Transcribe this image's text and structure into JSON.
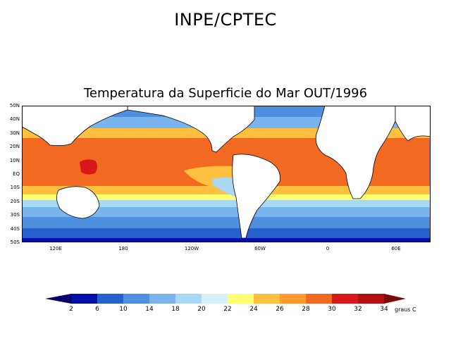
{
  "header": {
    "title": "INPE/CPTEC"
  },
  "map": {
    "title": "Temperatura da Superficie do Mar OUT/1996",
    "lat_labels": [
      "50N",
      "40N",
      "30N",
      "20N",
      "10N",
      "EQ",
      "10S",
      "20S",
      "30S",
      "40S",
      "50S"
    ],
    "lon_labels": [
      "120E",
      "180",
      "120W",
      "60W",
      "0",
      "60E"
    ]
  },
  "colorbar": {
    "labels": [
      "2",
      "6",
      "10",
      "14",
      "18",
      "20",
      "22",
      "24",
      "26",
      "28",
      "30",
      "32",
      "34"
    ],
    "units": "graus C",
    "colors": {
      "lt2": "#08006b",
      "b2_6": "#0010a8",
      "b6_10": "#2461cc",
      "b10_14": "#4f8fe0",
      "b14_18": "#7ab4ee",
      "b18_20": "#a8d8f4",
      "b20_22": "#d6f0fa",
      "b22_24": "#ffff70",
      "b24_26": "#ffc040",
      "b26_28": "#ff9a2e",
      "b28_30": "#f26a22",
      "b30_32": "#d81818",
      "b32_34": "#b01010",
      "gt34": "#7a0a0a",
      "land": "#ffffff",
      "coast": "#000000"
    }
  }
}
